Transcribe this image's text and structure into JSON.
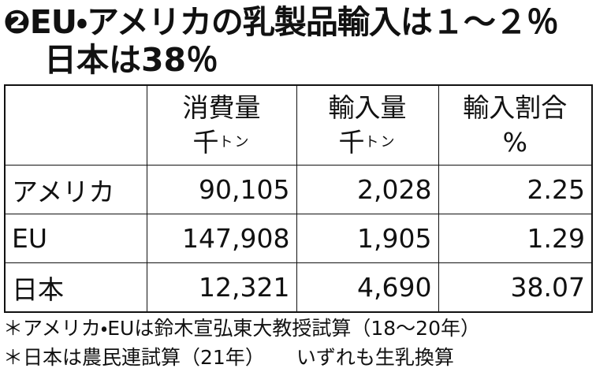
{
  "header": {
    "title": "❷EU・アメリカの乳製品輸入は１～２％",
    "subtitle": "日本は38％"
  },
  "table": {
    "columns": [
      {
        "label": "消費量",
        "unit_main": "千",
        "unit_small": "トン"
      },
      {
        "label": "輸入量",
        "unit_main": "千",
        "unit_small": "トン"
      },
      {
        "label": "輸入割合",
        "unit_main": "%"
      }
    ],
    "rows": [
      [
        "アメリカ",
        "90,105",
        "2,028",
        "2.25"
      ],
      [
        "EU",
        "147,908",
        "1,905",
        "1.29"
      ],
      [
        "日本",
        "12,321",
        "4,690",
        "38.07"
      ]
    ]
  },
  "notes": [
    "＊アメリカ・EUは鈴木宣弘東大教授試算（18～20年）",
    "＊日本は農民連試算（21年）",
    "いずれも生乳換算"
  ]
}
